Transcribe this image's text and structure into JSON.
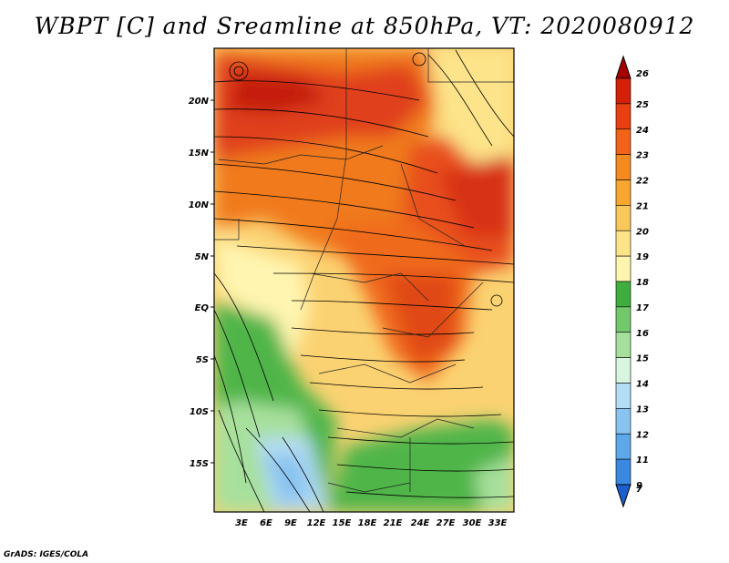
{
  "title": "WBPT [C] and Sreamline at 850hPa, VT: 2020080912",
  "credit": "GrADS: IGES/COLA",
  "map": {
    "lat_labels": [
      "20N",
      "15N",
      "10N",
      "5N",
      "EQ",
      "5S",
      "10S",
      "15S"
    ],
    "lon_labels": [
      "3E",
      "6E",
      "9E",
      "12E",
      "15E",
      "18E",
      "21E",
      "24E",
      "27E",
      "30E",
      "33E"
    ]
  },
  "colorbar": {
    "labels": [
      "26",
      "25",
      "24",
      "23",
      "22",
      "21",
      "20",
      "19",
      "18",
      "17",
      "16",
      "15",
      "14",
      "13",
      "12",
      "11",
      "9",
      "7"
    ],
    "colors": [
      "#a50000",
      "#d32008",
      "#e84010",
      "#f26218",
      "#f58a1e",
      "#f8a72e",
      "#f8c85a",
      "#fde48a",
      "#fff5b0",
      "#3fae3f",
      "#72c86a",
      "#a7e09c",
      "#d8f5e0",
      "#b4dcf5",
      "#89c3f0",
      "#5ea8ea",
      "#3a88e0",
      "#1d5fcf"
    ]
  }
}
